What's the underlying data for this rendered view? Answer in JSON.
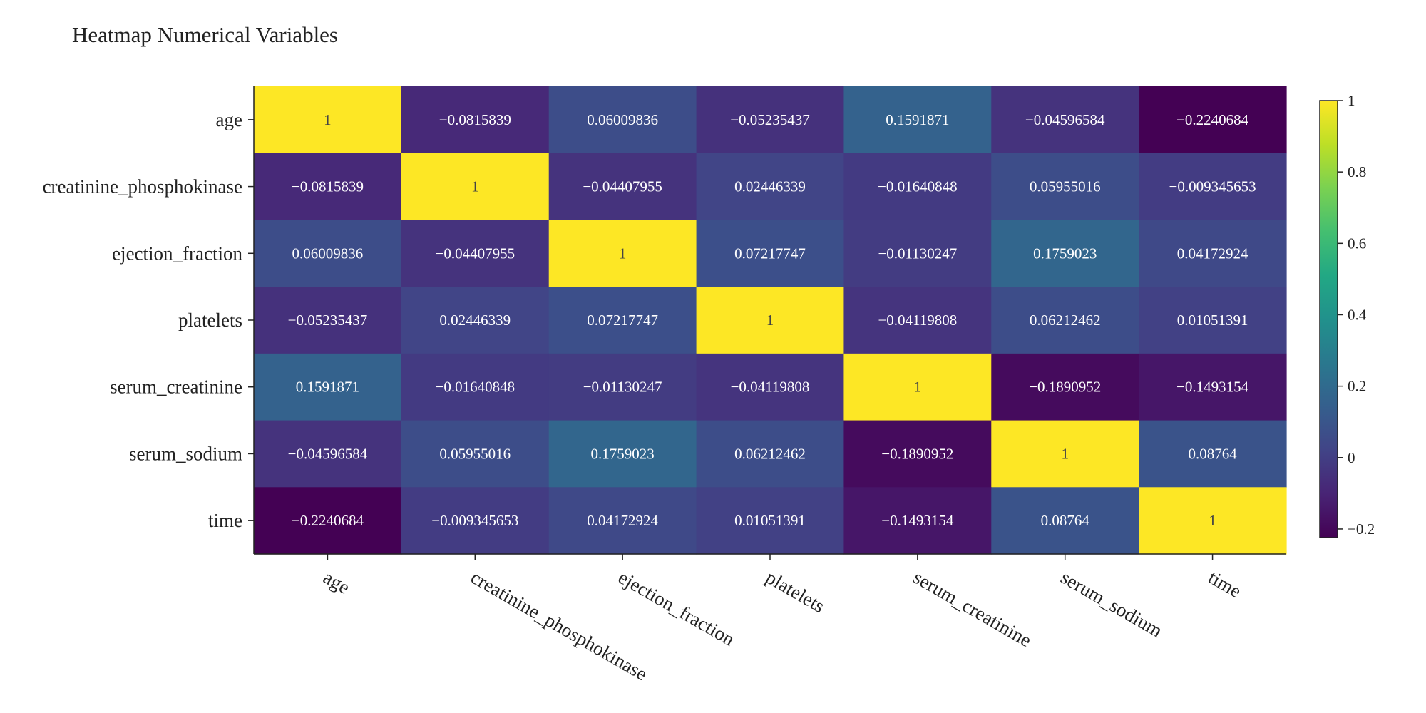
{
  "chart_data": {
    "type": "heatmap",
    "title": "Heatmap Numerical Variables",
    "x_categories": [
      "age",
      "creatinine_phosphokinase",
      "ejection_fraction",
      "platelets",
      "serum_creatinine",
      "serum_sodium",
      "time"
    ],
    "y_categories": [
      "age",
      "creatinine_phosphokinase",
      "ejection_fraction",
      "platelets",
      "serum_creatinine",
      "serum_sodium",
      "time"
    ],
    "values": [
      [
        1,
        -0.0815839,
        0.06009836,
        -0.05235437,
        0.1591871,
        -0.04596584,
        -0.2240684
      ],
      [
        -0.0815839,
        1,
        -0.04407955,
        0.02446339,
        -0.01640848,
        0.05955016,
        -0.009345653
      ],
      [
        0.06009836,
        -0.04407955,
        1,
        0.07217747,
        -0.01130247,
        0.1759023,
        0.04172924
      ],
      [
        -0.05235437,
        0.02446339,
        0.07217747,
        1,
        -0.04119808,
        0.06212462,
        0.01051391
      ],
      [
        0.1591871,
        -0.01640848,
        -0.01130247,
        -0.04119808,
        1,
        -0.1890952,
        -0.1493154
      ],
      [
        -0.04596584,
        0.05955016,
        0.1759023,
        0.06212462,
        -0.1890952,
        1,
        0.08764
      ],
      [
        -0.2240684,
        -0.009345653,
        0.04172924,
        0.01051391,
        -0.1493154,
        0.08764,
        1
      ]
    ],
    "labels": [
      [
        "1",
        "−0.0815839",
        "0.06009836",
        "−0.05235437",
        "0.1591871",
        "−0.04596584",
        "−0.2240684"
      ],
      [
        "−0.0815839",
        "1",
        "−0.04407955",
        "0.02446339",
        "−0.01640848",
        "0.05955016",
        "−0.009345653"
      ],
      [
        "0.06009836",
        "−0.04407955",
        "1",
        "0.07217747",
        "−0.01130247",
        "0.1759023",
        "0.04172924"
      ],
      [
        "−0.05235437",
        "0.02446339",
        "0.07217747",
        "1",
        "−0.04119808",
        "0.06212462",
        "0.01051391"
      ],
      [
        "0.1591871",
        "−0.01640848",
        "−0.01130247",
        "−0.04119808",
        "1",
        "−0.1890952",
        "−0.1493154"
      ],
      [
        "−0.04596584",
        "0.05955016",
        "0.1759023",
        "0.06212462",
        "−0.1890952",
        "1",
        "0.08764"
      ],
      [
        "−0.2240684",
        "−0.009345653",
        "0.04172924",
        "0.01051391",
        "−0.1493154",
        "0.08764",
        "1"
      ]
    ],
    "colorscale": "viridis",
    "zmin": -0.2240684,
    "zmax": 1,
    "colorbar": {
      "ticks": [
        1,
        0.8,
        0.6,
        0.4,
        0.2,
        0,
        -0.2
      ],
      "tick_labels": [
        "1",
        "0.8",
        "0.6",
        "0.4",
        "0.2",
        "0",
        "−0.2"
      ]
    },
    "label_color_light": "#ffffff",
    "label_color_dark": "#444444"
  }
}
